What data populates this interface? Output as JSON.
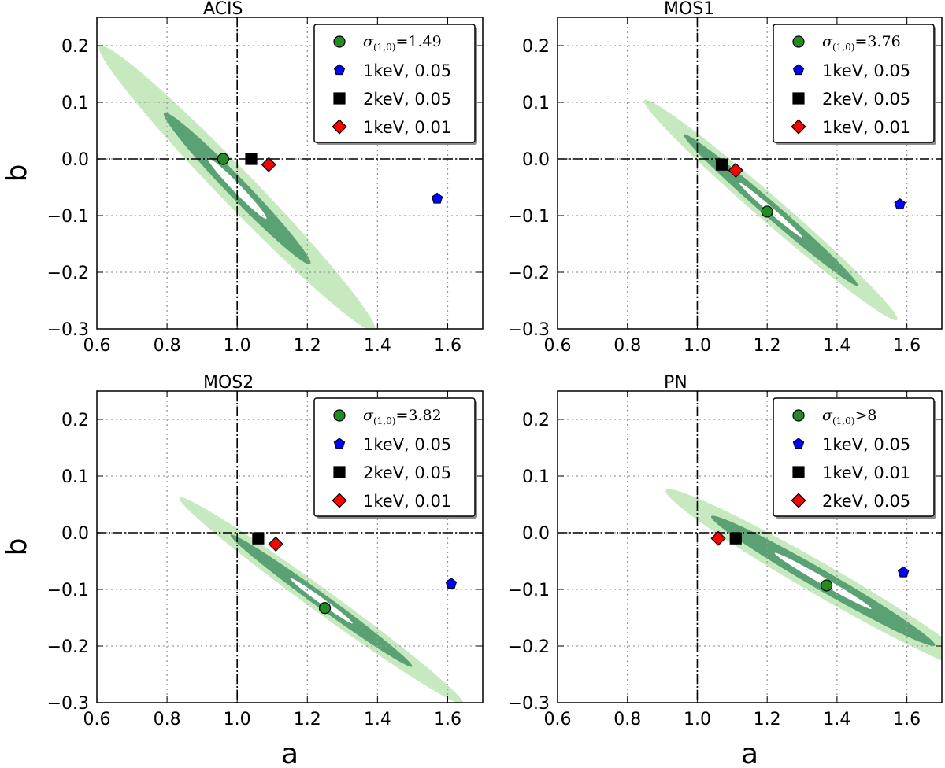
{
  "chart_data": [
    {
      "type": "scatter",
      "title": "ACIS",
      "xlabel": "",
      "ylabel": "b",
      "xlim": [
        0.6,
        1.7
      ],
      "ylim": [
        -0.3,
        0.25
      ],
      "xticks": [
        "0.6",
        "0.8",
        "1.0",
        "1.2",
        "1.4",
        "1.6"
      ],
      "yticks": [
        "0.2",
        "0.1",
        "0.0",
        "−0.1",
        "−0.2",
        "−0.3"
      ],
      "grid": true,
      "reference_lines": {
        "x": 1.0,
        "y": 0.0
      },
      "contours": {
        "center": [
          1.0,
          -0.052
        ],
        "tilt_deg": 46,
        "outer": {
          "along": 0.565,
          "across": 0.05
        },
        "middle": {
          "along": 0.3,
          "across": 0.028
        },
        "inner": {
          "along": 0.12,
          "across": 0.012
        }
      },
      "legend_position": "top-right",
      "legend": [
        {
          "marker": "circle",
          "color": "#228b22",
          "label_prefix": "σ",
          "label_sub": "(1,0)",
          "label_rest": "=1.49"
        },
        {
          "marker": "pentagon",
          "color": "#0000ff",
          "label": "1keV, 0.05"
        },
        {
          "marker": "square",
          "color": "#000000",
          "label": "2keV, 0.05"
        },
        {
          "marker": "diamond",
          "color": "#ff0000",
          "label": "1keV, 0.01"
        }
      ],
      "points": [
        {
          "x": 0.96,
          "y": 0.0
        },
        {
          "x": 1.57,
          "y": -0.07
        },
        {
          "x": 1.04,
          "y": 0.0
        },
        {
          "x": 1.09,
          "y": -0.01
        }
      ]
    },
    {
      "type": "scatter",
      "title": "MOS1",
      "xlabel": "",
      "ylabel": "",
      "xlim": [
        0.6,
        1.7
      ],
      "ylim": [
        -0.3,
        0.25
      ],
      "xticks": [
        "0.6",
        "0.8",
        "1.0",
        "1.2",
        "1.4",
        "1.6"
      ],
      "yticks": [
        "0.2",
        "0.1",
        "0.0",
        "−0.1",
        "−0.2",
        "−0.3"
      ],
      "grid": true,
      "reference_lines": {
        "x": 1.0,
        "y": 0.0
      },
      "contours": {
        "center": [
          1.21,
          -0.09
        ],
        "tilt_deg": 41,
        "outer": {
          "along": 0.48,
          "across": 0.036
        },
        "middle": {
          "along": 0.33,
          "across": 0.022
        },
        "inner": {
          "along": 0.12,
          "across": 0.008
        }
      },
      "legend_position": "top-right",
      "legend": [
        {
          "marker": "circle",
          "color": "#228b22",
          "label_prefix": "σ",
          "label_sub": "(1,0)",
          "label_rest": "=3.76"
        },
        {
          "marker": "pentagon",
          "color": "#0000ff",
          "label": "1keV, 0.05"
        },
        {
          "marker": "square",
          "color": "#000000",
          "label": "2keV, 0.05"
        },
        {
          "marker": "diamond",
          "color": "#ff0000",
          "label": "1keV, 0.01"
        }
      ],
      "points": [
        {
          "x": 1.2,
          "y": -0.093
        },
        {
          "x": 1.58,
          "y": -0.08
        },
        {
          "x": 1.07,
          "y": -0.01
        },
        {
          "x": 1.11,
          "y": -0.02
        }
      ]
    },
    {
      "type": "scatter",
      "title": "MOS2",
      "xlabel": "a",
      "ylabel": "b",
      "xlim": [
        0.6,
        1.7
      ],
      "ylim": [
        -0.3,
        0.25
      ],
      "xticks": [
        "0.6",
        "0.8",
        "1.0",
        "1.2",
        "1.4",
        "1.6"
      ],
      "yticks": [
        "0.2",
        "0.1",
        "0.0",
        "−0.1",
        "−0.2",
        "−0.3"
      ],
      "grid": true,
      "reference_lines": {
        "x": 1.0,
        "y": 0.0
      },
      "contours": {
        "center": [
          1.24,
          -0.12
        ],
        "tilt_deg": 36,
        "outer": {
          "along": 0.5,
          "across": 0.033
        },
        "middle": {
          "along": 0.32,
          "across": 0.02
        },
        "inner": {
          "along": 0.11,
          "across": 0.008
        }
      },
      "legend_position": "top-right",
      "legend": [
        {
          "marker": "circle",
          "color": "#228b22",
          "label_prefix": "σ",
          "label_sub": "(1,0)",
          "label_rest": "=3.82"
        },
        {
          "marker": "pentagon",
          "color": "#0000ff",
          "label": "1keV, 0.05"
        },
        {
          "marker": "square",
          "color": "#000000",
          "label": "2keV, 0.05"
        },
        {
          "marker": "diamond",
          "color": "#ff0000",
          "label": "1keV, 0.01"
        }
      ],
      "points": [
        {
          "x": 1.25,
          "y": -0.133
        },
        {
          "x": 1.61,
          "y": -0.09
        },
        {
          "x": 1.06,
          "y": -0.01
        },
        {
          "x": 1.11,
          "y": -0.02
        }
      ]
    },
    {
      "type": "scatter",
      "title": "PN",
      "xlabel": "a",
      "ylabel": "",
      "xlim": [
        0.6,
        1.7
      ],
      "ylim": [
        -0.3,
        0.25
      ],
      "xticks": [
        "0.6",
        "0.8",
        "1.0",
        "1.2",
        "1.4",
        "1.6"
      ],
      "yticks": [
        "0.2",
        "0.1",
        "0.0",
        "−0.1",
        "−0.2",
        "−0.3"
      ],
      "grid": true,
      "reference_lines": {
        "x": 1.0,
        "y": 0.0
      },
      "contours": {
        "center": [
          1.36,
          -0.085
        ],
        "tilt_deg": 30,
        "outer": {
          "along": 0.52,
          "across": 0.045
        },
        "middle": {
          "along": 0.37,
          "across": 0.028
        },
        "inner": {
          "along": 0.16,
          "across": 0.01
        }
      },
      "legend_position": "top-right",
      "legend": [
        {
          "marker": "circle",
          "color": "#228b22",
          "label_prefix": "σ",
          "label_sub": "(1,0)",
          "label_rest": ">8"
        },
        {
          "marker": "pentagon",
          "color": "#0000ff",
          "label": "1keV, 0.05"
        },
        {
          "marker": "square",
          "color": "#000000",
          "label": "1keV, 0.01"
        },
        {
          "marker": "diamond",
          "color": "#ff0000",
          "label": "2keV, 0.05"
        }
      ],
      "points": [
        {
          "x": 1.37,
          "y": -0.093
        },
        {
          "x": 1.59,
          "y": -0.07
        },
        {
          "x": 1.11,
          "y": -0.01
        },
        {
          "x": 1.06,
          "y": -0.01
        }
      ]
    }
  ],
  "colors": {
    "outer_contour": "#c7e9c0",
    "middle_contour": "#5aa273",
    "inner_contour": "#ffffff",
    "grid": "#9a9a9a",
    "axes": "#000000"
  }
}
